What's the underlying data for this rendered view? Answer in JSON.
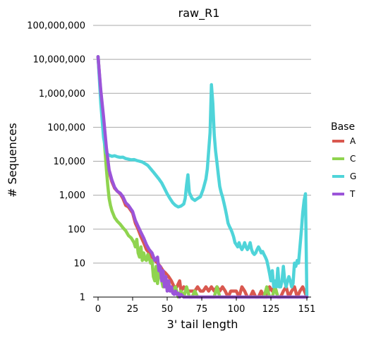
{
  "chart_data": {
    "type": "line",
    "title": "raw_R1",
    "xlabel": "3' tail length",
    "ylabel": "# Sequences",
    "xlim": [
      0,
      151
    ],
    "ylim": [
      1,
      100000000
    ],
    "yscale": "log",
    "x_ticks": [
      0,
      25,
      50,
      75,
      100,
      125,
      151
    ],
    "y_ticks": [
      1,
      10,
      100,
      1000,
      10000,
      100000,
      1000000,
      10000000,
      100000000
    ],
    "y_tick_labels": [
      "1",
      "10",
      "100",
      "1,000",
      "10,000",
      "100,000",
      "1,000,000",
      "10,000,000",
      "100,000,000"
    ],
    "grid": "horizontal",
    "legend": {
      "title": "Base",
      "placement": "right"
    },
    "series": [
      {
        "name": "A",
        "color": "#d9584f",
        "points": [
          [
            0,
            12000000
          ],
          [
            2,
            1000000
          ],
          [
            4,
            150000
          ],
          [
            6,
            20000
          ],
          [
            8,
            5000
          ],
          [
            10,
            2500
          ],
          [
            12,
            1600
          ],
          [
            14,
            1300
          ],
          [
            16,
            1100
          ],
          [
            18,
            800
          ],
          [
            20,
            500
          ],
          [
            22,
            450
          ],
          [
            25,
            300
          ],
          [
            27,
            150
          ],
          [
            29,
            100
          ],
          [
            31,
            60
          ],
          [
            33,
            40
          ],
          [
            35,
            25
          ],
          [
            37,
            20
          ],
          [
            39,
            15
          ],
          [
            41,
            12
          ],
          [
            43,
            10
          ],
          [
            45,
            8
          ],
          [
            47,
            6
          ],
          [
            49,
            5
          ],
          [
            51,
            4
          ],
          [
            53,
            3
          ],
          [
            55,
            2
          ],
          [
            57,
            2
          ],
          [
            59,
            3
          ],
          [
            60,
            1.5
          ],
          [
            62,
            2
          ],
          [
            64,
            1.5
          ],
          [
            66,
            1.5
          ],
          [
            68,
            1.5
          ],
          [
            70,
            1.5
          ],
          [
            72,
            2
          ],
          [
            74,
            1.5
          ],
          [
            76,
            1.5
          ],
          [
            78,
            2
          ],
          [
            80,
            1.5
          ],
          [
            82,
            2
          ],
          [
            84,
            1.5
          ],
          [
            86,
            2
          ],
          [
            88,
            1.5
          ],
          [
            90,
            2
          ],
          [
            92,
            1.5
          ],
          [
            94,
            1
          ],
          [
            96,
            1.5
          ],
          [
            98,
            1.5
          ],
          [
            100,
            1.5
          ],
          [
            102,
            1
          ],
          [
            104,
            2
          ],
          [
            106,
            1.5
          ],
          [
            108,
            1
          ],
          [
            110,
            1
          ],
          [
            112,
            1.5
          ],
          [
            114,
            1
          ],
          [
            116,
            1
          ],
          [
            118,
            1.5
          ],
          [
            120,
            1
          ],
          [
            122,
            1
          ],
          [
            124,
            2
          ],
          [
            126,
            1.5
          ],
          [
            128,
            2
          ],
          [
            130,
            1
          ],
          [
            132,
            1
          ],
          [
            134,
            1.5
          ],
          [
            136,
            2
          ],
          [
            138,
            1
          ],
          [
            140,
            1.5
          ],
          [
            142,
            2
          ],
          [
            144,
            1
          ],
          [
            146,
            1.5
          ],
          [
            148,
            2
          ],
          [
            151,
            1
          ]
        ]
      },
      {
        "name": "C",
        "color": "#8fd44f",
        "points": [
          [
            0,
            12000000
          ],
          [
            2,
            800000
          ],
          [
            4,
            80000
          ],
          [
            6,
            6000
          ],
          [
            7,
            2000
          ],
          [
            8,
            800
          ],
          [
            9,
            500
          ],
          [
            10,
            350
          ],
          [
            12,
            220
          ],
          [
            14,
            170
          ],
          [
            16,
            140
          ],
          [
            18,
            110
          ],
          [
            20,
            90
          ],
          [
            22,
            65
          ],
          [
            24,
            55
          ],
          [
            26,
            40
          ],
          [
            27,
            30
          ],
          [
            28,
            50
          ],
          [
            29,
            20
          ],
          [
            30,
            15
          ],
          [
            31,
            30
          ],
          [
            32,
            12
          ],
          [
            33,
            20
          ],
          [
            34,
            13
          ],
          [
            35,
            12
          ],
          [
            36,
            18
          ],
          [
            37,
            14
          ],
          [
            38,
            10
          ],
          [
            39,
            12
          ],
          [
            40,
            4
          ],
          [
            41,
            3
          ],
          [
            42,
            8
          ],
          [
            43,
            2.5
          ],
          [
            44,
            6
          ],
          [
            45,
            5
          ],
          [
            46,
            3
          ],
          [
            47,
            2
          ],
          [
            48,
            4
          ],
          [
            49,
            2
          ],
          [
            50,
            3
          ],
          [
            52,
            2
          ],
          [
            54,
            1.5
          ],
          [
            56,
            2
          ],
          [
            58,
            1
          ],
          [
            60,
            1.5
          ],
          [
            62,
            1
          ],
          [
            64,
            2
          ],
          [
            66,
            1
          ],
          [
            68,
            1
          ],
          [
            70,
            1.5
          ],
          [
            72,
            1
          ],
          [
            74,
            1
          ],
          [
            76,
            1
          ],
          [
            78,
            1
          ],
          [
            80,
            1
          ],
          [
            82,
            1
          ],
          [
            84,
            1
          ],
          [
            86,
            2
          ],
          [
            88,
            1
          ],
          [
            90,
            1
          ],
          [
            92,
            1
          ],
          [
            94,
            1
          ],
          [
            96,
            1
          ],
          [
            98,
            1
          ],
          [
            100,
            1
          ],
          [
            105,
            1
          ],
          [
            110,
            1
          ],
          [
            115,
            1
          ],
          [
            120,
            1
          ],
          [
            122,
            2
          ],
          [
            124,
            1
          ],
          [
            126,
            1
          ],
          [
            128,
            2
          ],
          [
            130,
            1
          ],
          [
            135,
            1
          ],
          [
            140,
            1
          ],
          [
            145,
            1
          ],
          [
            151,
            1
          ]
        ]
      },
      {
        "name": "G",
        "color": "#4fd4d9",
        "points": [
          [
            0,
            12000000
          ],
          [
            2,
            500000
          ],
          [
            4,
            50000
          ],
          [
            6,
            17000
          ],
          [
            8,
            15000
          ],
          [
            10,
            14000
          ],
          [
            12,
            14500
          ],
          [
            14,
            13500
          ],
          [
            16,
            13000
          ],
          [
            18,
            13200
          ],
          [
            20,
            12000
          ],
          [
            22,
            11500
          ],
          [
            24,
            11000
          ],
          [
            26,
            11200
          ],
          [
            28,
            10500
          ],
          [
            30,
            10000
          ],
          [
            32,
            9500
          ],
          [
            34,
            8500
          ],
          [
            36,
            7500
          ],
          [
            38,
            6000
          ],
          [
            40,
            4800
          ],
          [
            42,
            3800
          ],
          [
            44,
            3000
          ],
          [
            46,
            2300
          ],
          [
            48,
            1600
          ],
          [
            50,
            1100
          ],
          [
            52,
            800
          ],
          [
            54,
            600
          ],
          [
            56,
            500
          ],
          [
            58,
            450
          ],
          [
            60,
            480
          ],
          [
            62,
            550
          ],
          [
            63,
            800
          ],
          [
            64,
            2000
          ],
          [
            65,
            4000
          ],
          [
            66,
            1200
          ],
          [
            68,
            800
          ],
          [
            70,
            700
          ],
          [
            72,
            800
          ],
          [
            74,
            900
          ],
          [
            76,
            1500
          ],
          [
            78,
            3000
          ],
          [
            79,
            6000
          ],
          [
            80,
            20000
          ],
          [
            81,
            70000
          ],
          [
            82,
            1800000
          ],
          [
            83,
            500000
          ],
          [
            84,
            60000
          ],
          [
            85,
            20000
          ],
          [
            86,
            9000
          ],
          [
            87,
            4000
          ],
          [
            88,
            1800
          ],
          [
            89,
            1200
          ],
          [
            90,
            900
          ],
          [
            91,
            600
          ],
          [
            92,
            400
          ],
          [
            93,
            250
          ],
          [
            94,
            150
          ],
          [
            95,
            120
          ],
          [
            96,
            100
          ],
          [
            97,
            80
          ],
          [
            98,
            60
          ],
          [
            99,
            40
          ],
          [
            100,
            35
          ],
          [
            101,
            30
          ],
          [
            102,
            40
          ],
          [
            103,
            30
          ],
          [
            104,
            25
          ],
          [
            105,
            30
          ],
          [
            106,
            40
          ],
          [
            107,
            30
          ],
          [
            108,
            25
          ],
          [
            109,
            30
          ],
          [
            110,
            40
          ],
          [
            111,
            25
          ],
          [
            112,
            20
          ],
          [
            113,
            18
          ],
          [
            114,
            20
          ],
          [
            115,
            25
          ],
          [
            116,
            30
          ],
          [
            117,
            25
          ],
          [
            118,
            20
          ],
          [
            119,
            22
          ],
          [
            120,
            18
          ],
          [
            121,
            15
          ],
          [
            122,
            12
          ],
          [
            123,
            8
          ],
          [
            124,
            5
          ],
          [
            125,
            3
          ],
          [
            126,
            6
          ],
          [
            127,
            2
          ],
          [
            128,
            3
          ],
          [
            129,
            2
          ],
          [
            130,
            7
          ],
          [
            131,
            2
          ],
          [
            132,
            2
          ],
          [
            133,
            3
          ],
          [
            134,
            8
          ],
          [
            135,
            3
          ],
          [
            136,
            2
          ],
          [
            137,
            3
          ],
          [
            138,
            4
          ],
          [
            139,
            3
          ],
          [
            140,
            2
          ],
          [
            141,
            2.5
          ],
          [
            142,
            10
          ],
          [
            143,
            8
          ],
          [
            144,
            12
          ],
          [
            145,
            10
          ],
          [
            146,
            30
          ],
          [
            147,
            90
          ],
          [
            148,
            300
          ],
          [
            149,
            700
          ],
          [
            150,
            1100
          ],
          [
            151,
            1
          ]
        ]
      },
      {
        "name": "T",
        "color": "#9b54d9",
        "points": [
          [
            0,
            12000000
          ],
          [
            2,
            1200000
          ],
          [
            4,
            200000
          ],
          [
            6,
            25000
          ],
          [
            8,
            5500
          ],
          [
            10,
            2800
          ],
          [
            12,
            1700
          ],
          [
            14,
            1300
          ],
          [
            16,
            1150
          ],
          [
            18,
            900
          ],
          [
            20,
            600
          ],
          [
            22,
            500
          ],
          [
            25,
            330
          ],
          [
            27,
            180
          ],
          [
            29,
            120
          ],
          [
            31,
            80
          ],
          [
            33,
            55
          ],
          [
            35,
            35
          ],
          [
            37,
            25
          ],
          [
            39,
            20
          ],
          [
            41,
            12
          ],
          [
            43,
            15
          ],
          [
            44,
            6
          ],
          [
            45,
            8
          ],
          [
            46,
            3
          ],
          [
            47,
            6
          ],
          [
            48,
            2
          ],
          [
            49,
            4
          ],
          [
            50,
            1.5
          ],
          [
            51,
            3
          ],
          [
            52,
            1.5
          ],
          [
            53,
            2
          ],
          [
            54,
            1.3
          ],
          [
            55,
            1.2
          ],
          [
            56,
            1.5
          ],
          [
            57,
            1.2
          ],
          [
            58,
            1.3
          ],
          [
            59,
            1
          ],
          [
            60,
            1.2
          ],
          [
            62,
            1
          ],
          [
            64,
            1
          ],
          [
            66,
            1
          ],
          [
            70,
            1
          ],
          [
            75,
            1
          ],
          [
            80,
            1
          ],
          [
            85,
            1
          ],
          [
            90,
            1
          ],
          [
            100,
            1
          ],
          [
            110,
            1
          ],
          [
            120,
            1
          ],
          [
            130,
            1
          ],
          [
            140,
            1
          ],
          [
            151,
            1
          ]
        ]
      }
    ]
  }
}
